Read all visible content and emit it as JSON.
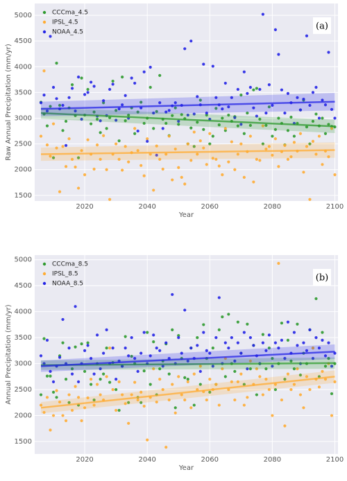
{
  "chart_data": [
    {
      "type": "scatter",
      "annotation": "(a)",
      "xlabel": "Year",
      "ylabel": "Raw Annual Precipitation (mm/yr)",
      "xlim": [
        2004,
        2101
      ],
      "ylim": [
        1390,
        5230
      ],
      "xticks": [
        2020,
        2040,
        2060,
        2080,
        2100
      ],
      "yticks": [
        1500,
        2000,
        2500,
        3000,
        3500,
        4000,
        4500,
        5000
      ],
      "grid": true,
      "legend": "upper-left",
      "x": [
        2006,
        2007,
        2008,
        2009,
        2010,
        2011,
        2012,
        2013,
        2014,
        2015,
        2016,
        2017,
        2018,
        2019,
        2020,
        2021,
        2022,
        2023,
        2024,
        2025,
        2026,
        2027,
        2028,
        2029,
        2030,
        2031,
        2032,
        2033,
        2034,
        2035,
        2036,
        2037,
        2038,
        2039,
        2040,
        2041,
        2042,
        2043,
        2044,
        2045,
        2046,
        2047,
        2048,
        2049,
        2050,
        2051,
        2052,
        2053,
        2054,
        2055,
        2056,
        2057,
        2058,
        2059,
        2060,
        2061,
        2062,
        2063,
        2064,
        2065,
        2066,
        2067,
        2068,
        2069,
        2070,
        2071,
        2072,
        2073,
        2074,
        2075,
        2076,
        2077,
        2078,
        2079,
        2080,
        2081,
        2082,
        2083,
        2084,
        2085,
        2086,
        2087,
        2088,
        2089,
        2090,
        2091,
        2092,
        2093,
        2094,
        2095,
        2096,
        2097,
        2098,
        2099,
        2100
      ],
      "series": [
        {
          "name": "CCCma_4.5",
          "color": "#2e9a2e",
          "trend": {
            "x": [
              2006,
              2100
            ],
            "values": [
              3100,
              2840
            ],
            "ci": [
              110,
              130
            ]
          },
          "values": [
            3310,
            3080,
            2850,
            3230,
            2230,
            4070,
            3250,
            2760,
            2940,
            3200,
            3650,
            3050,
            2230,
            3780,
            3060,
            3560,
            2890,
            3120,
            2980,
            2720,
            3300,
            2800,
            3010,
            3720,
            3150,
            2560,
            3800,
            2950,
            3060,
            3200,
            2700,
            3120,
            3310,
            2900,
            3000,
            3600,
            2800,
            3130,
            3830,
            2980,
            2900,
            2660,
            3050,
            3200,
            2880,
            3070,
            2990,
            2500,
            2810,
            2450,
            2920,
            3350,
            2780,
            3060,
            2500,
            2650,
            3190,
            2870,
            3000,
            2760,
            3060,
            2940,
            3030,
            2850,
            3450,
            2700,
            3100,
            2860,
            3550,
            3580,
            2980,
            2500,
            2860,
            3220,
            2650,
            2780,
            3000,
            2900,
            2480,
            2760,
            3020,
            2650,
            2900,
            3160,
            3350,
            2830,
            2500,
            2940,
            3080,
            2850,
            3000,
            2700,
            2880,
            2840,
            2830
          ]
        },
        {
          "name": "IPSL_4.5",
          "color": "#ffac33",
          "trend": {
            "x": [
              2006,
              2100
            ],
            "values": [
              2300,
              2380
            ],
            "ci": [
              130,
              150
            ]
          },
          "values": [
            2650,
            3920,
            2480,
            2260,
            2890,
            2420,
            1570,
            2450,
            2060,
            2600,
            2200,
            2050,
            1640,
            2370,
            1900,
            2580,
            2300,
            2010,
            2480,
            2200,
            2660,
            2000,
            1420,
            2300,
            2500,
            2200,
            1990,
            2450,
            2150,
            2330,
            2800,
            2370,
            2080,
            1880,
            2600,
            2300,
            1600,
            2460,
            2200,
            2010,
            2300,
            2650,
            1800,
            2400,
            2040,
            1850,
            1720,
            2500,
            2180,
            2730,
            2300,
            2560,
            2420,
            2100,
            2700,
            2220,
            2200,
            2070,
            1900,
            2800,
            2150,
            2540,
            2000,
            2300,
            2500,
            1850,
            2350,
            2650,
            1760,
            2200,
            2180,
            2850,
            2400,
            2450,
            2280,
            2600,
            2060,
            2350,
            2470,
            2200,
            2250,
            2530,
            2360,
            2700,
            1950,
            2450,
            1420,
            2550,
            2300,
            2650,
            2100,
            2360,
            2250,
            2800,
            1900
          ]
        },
        {
          "name": "NOAA_4.5",
          "color": "#2424e6",
          "trend": {
            "x": [
              2006,
              2100
            ],
            "values": [
              3180,
              3320
            ],
            "ci": [
              140,
              170
            ]
          },
          "values": [
            3300,
            3450,
            3140,
            4590,
            3600,
            3380,
            3180,
            3250,
            2470,
            3400,
            3580,
            3140,
            3800,
            2980,
            3460,
            3500,
            3700,
            3620,
            3040,
            2950,
            3340,
            3050,
            3560,
            3660,
            2960,
            3180,
            3260,
            3440,
            3000,
            3780,
            3680,
            2750,
            3200,
            3900,
            2550,
            3990,
            3100,
            2280,
            3300,
            2800,
            3120,
            3150,
            3240,
            3300,
            2940,
            3250,
            4350,
            3060,
            4500,
            3080,
            3420,
            3260,
            4050,
            3100,
            2980,
            4010,
            3400,
            3260,
            3180,
            3680,
            3220,
            3400,
            3010,
            3560,
            2880,
            3900,
            3480,
            3600,
            3200,
            3040,
            3560,
            5020,
            3100,
            3650,
            3250,
            4720,
            4240,
            3550,
            3100,
            3480,
            3300,
            2900,
            3400,
            3160,
            3370,
            4600,
            3250,
            3500,
            3600,
            3000,
            3350,
            3260,
            4280,
            3170,
            3000
          ]
        }
      ]
    },
    {
      "type": "scatter",
      "annotation": "(b)",
      "xlabel": "Year",
      "ylabel": "Annual Precipitation (mm/yr)",
      "xlim": [
        2004,
        2101
      ],
      "ylim": [
        1260,
        5090
      ],
      "xticks": [
        2020,
        2040,
        2060,
        2080,
        2100
      ],
      "yticks": [
        1500,
        2000,
        2500,
        3000,
        3500,
        4000,
        4500,
        5000
      ],
      "grid": true,
      "legend": "upper-left",
      "x": [
        2006,
        2007,
        2008,
        2009,
        2010,
        2011,
        2012,
        2013,
        2014,
        2015,
        2016,
        2017,
        2018,
        2019,
        2020,
        2021,
        2022,
        2023,
        2024,
        2025,
        2026,
        2027,
        2028,
        2029,
        2030,
        2031,
        2032,
        2033,
        2034,
        2035,
        2036,
        2037,
        2038,
        2039,
        2040,
        2041,
        2042,
        2043,
        2044,
        2045,
        2046,
        2047,
        2048,
        2049,
        2050,
        2051,
        2052,
        2053,
        2054,
        2055,
        2056,
        2057,
        2058,
        2059,
        2060,
        2061,
        2062,
        2063,
        2064,
        2065,
        2066,
        2067,
        2068,
        2069,
        2070,
        2071,
        2072,
        2073,
        2074,
        2075,
        2076,
        2077,
        2078,
        2079,
        2080,
        2081,
        2082,
        2083,
        2084,
        2085,
        2086,
        2087,
        2088,
        2089,
        2090,
        2091,
        2092,
        2093,
        2094,
        2095,
        2096,
        2097,
        2098,
        2099,
        2100
      ],
      "series": [
        {
          "name": "CCCma_8.5",
          "color": "#2e9a2e",
          "trend": {
            "x": [
              2006,
              2100
            ],
            "values": [
              2970,
              3010
            ],
            "ci": [
              90,
              110
            ]
          },
          "values": [
            2400,
            3480,
            2760,
            2760,
            2450,
            2350,
            3150,
            3400,
            2700,
            2250,
            2900,
            3320,
            2200,
            3380,
            2850,
            3400,
            2600,
            2300,
            3000,
            2700,
            2800,
            3300,
            2640,
            3020,
            2500,
            2100,
            2950,
            3520,
            2250,
            3140,
            3000,
            2350,
            2250,
            2860,
            3600,
            2600,
            3420,
            2400,
            2900,
            3050,
            3380,
            2800,
            3650,
            2150,
            3540,
            3100,
            2730,
            2700,
            3300,
            2200,
            3500,
            2600,
            3750,
            3100,
            2450,
            3300,
            2600,
            3650,
            3900,
            2750,
            3950,
            3000,
            2850,
            3800,
            3200,
            2600,
            3760,
            2900,
            3350,
            2400,
            3000,
            3560,
            2900,
            3300,
            3100,
            2500,
            3000,
            3780,
            2700,
            3450,
            3050,
            2900,
            3760,
            2780,
            3200,
            3000,
            3650,
            3300,
            4250,
            2750,
            3600,
            2950,
            3100,
            2420,
            3000
          ]
        },
        {
          "name": "IPSL_8.5",
          "color": "#ffac33",
          "trend": {
            "x": [
              2006,
              2100
            ],
            "values": [
              2150,
              2750
            ],
            "ci": [
              110,
              120
            ]
          },
          "values": [
            2200,
            2060,
            2350,
            1720,
            2000,
            2480,
            2260,
            2000,
            1900,
            2400,
            2100,
            2560,
            2350,
            1900,
            2150,
            2340,
            2700,
            2200,
            2600,
            2400,
            2300,
            2750,
            3300,
            2500,
            2100,
            2650,
            2400,
            2230,
            1850,
            2400,
            2640,
            2300,
            2450,
            2180,
            1530,
            2350,
            2900,
            2260,
            2700,
            2500,
            1390,
            2300,
            2600,
            2050,
            2750,
            2400,
            2300,
            2650,
            2150,
            2800,
            2500,
            2950,
            2460,
            2300,
            2700,
            2500,
            2600,
            2200,
            2900,
            3100,
            2500,
            2650,
            2300,
            2650,
            2800,
            2200,
            2350,
            3050,
            2600,
            2900,
            2750,
            2400,
            2700,
            2500,
            2000,
            2600,
            4930,
            2300,
            1800,
            2800,
            2500,
            2600,
            2900,
            2400,
            2150,
            2750,
            2500,
            3300,
            2700,
            2550,
            2850,
            2700,
            3000,
            2000,
            2650
          ]
        },
        {
          "name": "NOAA_8.5",
          "color": "#2424e6",
          "trend": {
            "x": [
              2006,
              2100
            ],
            "values": [
              2950,
              3230
            ],
            "ci": [
              110,
              140
            ]
          },
          "values": [
            3150,
            3000,
            3450,
            2850,
            2650,
            2950,
            3120,
            3850,
            3000,
            3300,
            2800,
            4100,
            2650,
            3000,
            3250,
            3350,
            3100,
            2800,
            3550,
            2900,
            3200,
            3650,
            3000,
            3300,
            2700,
            3050,
            2950,
            3300,
            3150,
            3500,
            3100,
            2850,
            3200,
            3600,
            3000,
            3150,
            3550,
            3300,
            3250,
            2950,
            3400,
            3100,
            4330,
            3000,
            3500,
            3200,
            4030,
            3050,
            3300,
            3100,
            3350,
            2850,
            3600,
            3250,
            3200,
            2950,
            3500,
            4270,
            3000,
            3400,
            3300,
            3500,
            3050,
            3400,
            3200,
            3600,
            2900,
            3500,
            3350,
            3150,
            3000,
            3400,
            3250,
            3550,
            2950,
            3400,
            3300,
            3450,
            3100,
            3800,
            3200,
            3600,
            3350,
            3000,
            3400,
            3250,
            3650,
            3100,
            3500,
            3300,
            3450,
            3150,
            3400,
            2950,
            3200
          ]
        }
      ]
    }
  ]
}
